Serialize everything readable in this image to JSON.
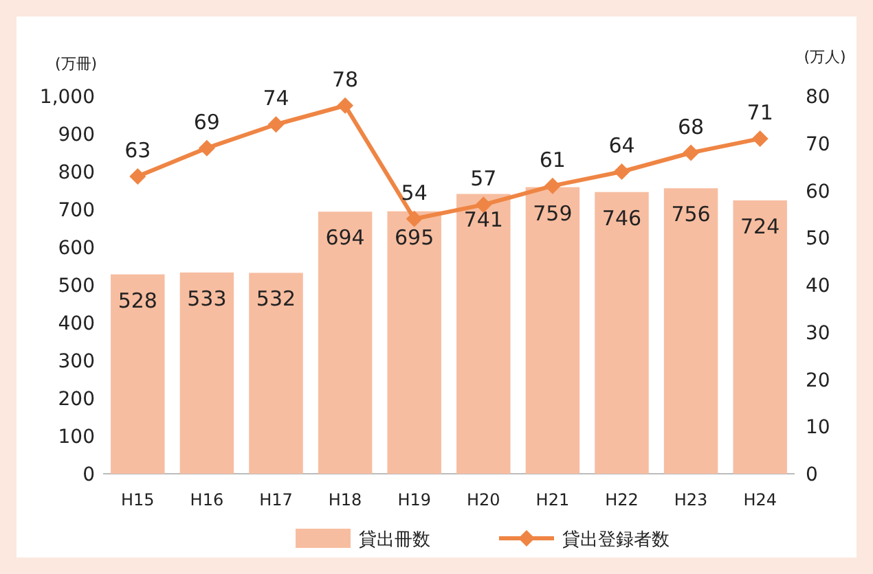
{
  "chart_data": {
    "type": "bar",
    "ylabel": "(万冊)",
    "y2label": "(万人)",
    "categories": [
      "H15",
      "H16",
      "H17",
      "H18",
      "H19",
      "H20",
      "H21",
      "H22",
      "H23",
      "H24"
    ],
    "series": [
      {
        "name": "貸出冊数",
        "color": "#f7bda0",
        "values": [
          528,
          533,
          532,
          694,
          695,
          741,
          759,
          746,
          756,
          724
        ]
      },
      {
        "name": "貸出登録者数",
        "type": "line",
        "axis": "y2",
        "color": "#ef8544",
        "marker": "diamond",
        "values": [
          63,
          69,
          74,
          78,
          54,
          57,
          61,
          64,
          68,
          71
        ]
      }
    ],
    "ylim": [
      0,
      1000
    ],
    "yticks": [
      0,
      100,
      200,
      300,
      400,
      500,
      600,
      700,
      800,
      900,
      {
        "value": 1000,
        "label": "1,000"
      }
    ],
    "y2lim": [
      0,
      80
    ],
    "y2ticks": [
      0,
      10,
      20,
      30,
      40,
      50,
      60,
      70,
      80
    ],
    "data_labels": true,
    "legend": "bottom",
    "grid": false
  }
}
